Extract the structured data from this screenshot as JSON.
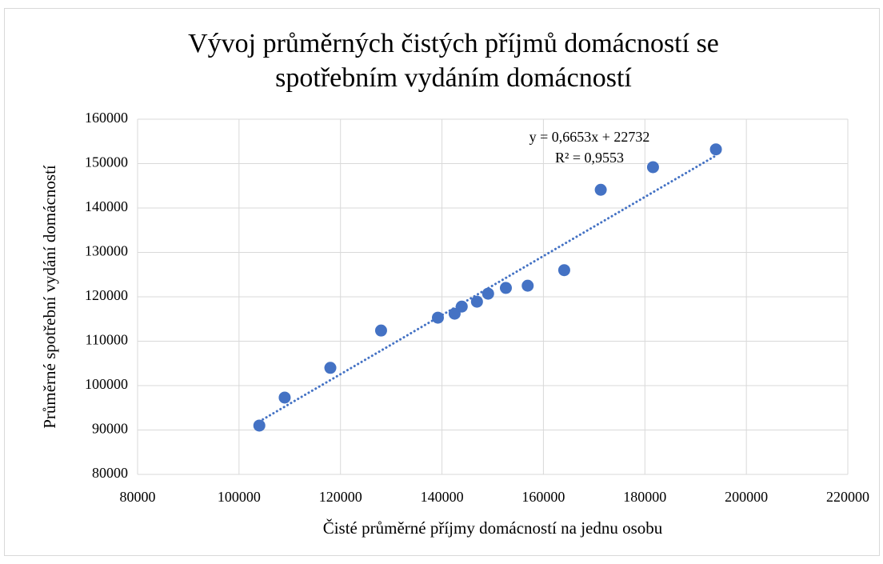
{
  "chart_data": {
    "type": "scatter",
    "title": [
      "Vývoj průměrných čistých příjmů domácností se",
      "spotřebním vydáním domácností"
    ],
    "x_label": "Čisté průměrné příjmy domácností na jednu osobu",
    "y_label": "Průměrné spotřební vydání domácností",
    "x": [
      104000,
      109000,
      118000,
      128000,
      139200,
      142500,
      143900,
      146900,
      149100,
      152600,
      156900,
      164100,
      171300,
      181600,
      194000
    ],
    "series": [
      {
        "name": "Průměrné spotřební vydání domácností",
        "color": "#4472c4",
        "values": [
          91000,
          97300,
          104000,
          112400,
          115300,
          116200,
          117800,
          118900,
          120700,
          122000,
          122500,
          126000,
          144100,
          149200,
          153200
        ]
      }
    ],
    "xlim": [
      80000,
      220000
    ],
    "xticks": [
      80000,
      100000,
      120000,
      140000,
      160000,
      180000,
      200000,
      220000
    ],
    "ylim": [
      80000,
      160000
    ],
    "yticks": [
      80000,
      90000,
      100000,
      110000,
      120000,
      130000,
      140000,
      150000,
      160000
    ],
    "grid": true,
    "trendline": {
      "slope": 0.6653,
      "intercept": 22732,
      "style": "dotted",
      "equation": "y = 0,6653x + 22732",
      "r_squared": "R² = 0,9553"
    }
  }
}
